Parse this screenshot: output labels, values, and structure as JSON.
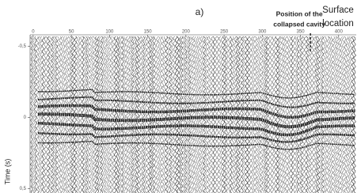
{
  "chart_data": {
    "type": "seismic-section",
    "panel_label": "a)",
    "annotations": [
      {
        "lines": [
          "Position of the",
          "collapsed cavity"
        ],
        "x": 363
      },
      {
        "lines": [
          "Surface",
          "location"
        ]
      }
    ],
    "ylabel": "Time (s)",
    "xlim": [
      -4,
      423
    ],
    "ylim": [
      -0.58,
      0.53
    ],
    "xticks": [
      0,
      50,
      100,
      150,
      200,
      250,
      300,
      350,
      400
    ],
    "yticks": [
      {
        "value": -0.5,
        "label": "-0,5"
      },
      0,
      {
        "value": 0.5,
        "label": "0,5"
      }
    ]
  }
}
